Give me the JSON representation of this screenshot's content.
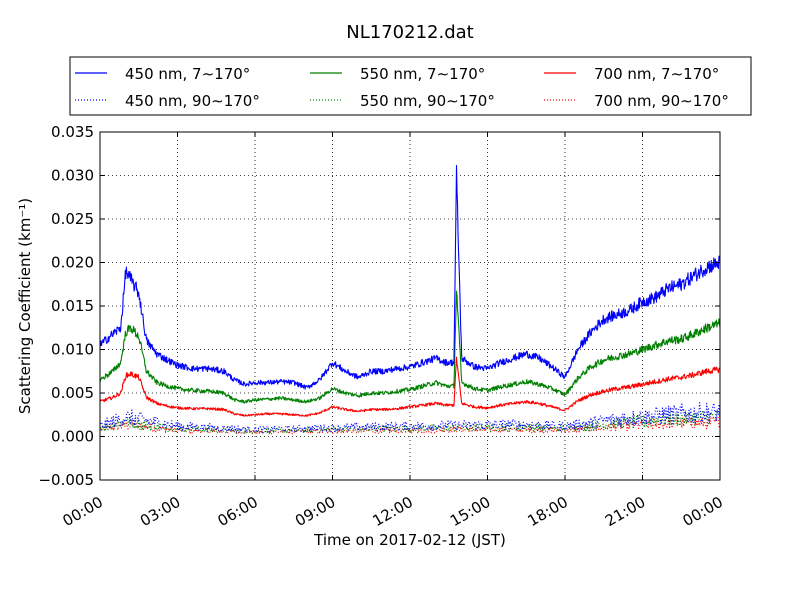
{
  "chart_data": {
    "type": "line",
    "title": "NL170212.dat",
    "xlabel": "Time on 2017-02-12 (JST)",
    "ylabel": "Scattering Coefficient (km⁻¹)",
    "xlim_hours": [
      0,
      24
    ],
    "ylim": [
      -0.005,
      0.035
    ],
    "xticks": [
      {
        "h": 0,
        "label": "00:00"
      },
      {
        "h": 3,
        "label": "03:00"
      },
      {
        "h": 6,
        "label": "06:00"
      },
      {
        "h": 9,
        "label": "09:00"
      },
      {
        "h": 12,
        "label": "12:00"
      },
      {
        "h": 15,
        "label": "15:00"
      },
      {
        "h": 18,
        "label": "18:00"
      },
      {
        "h": 21,
        "label": "21:00"
      },
      {
        "h": 24,
        "label": "00:00"
      }
    ],
    "yticks": [
      {
        "v": -0.005,
        "label": "−0.005"
      },
      {
        "v": 0.0,
        "label": "0.000"
      },
      {
        "v": 0.005,
        "label": "0.005"
      },
      {
        "v": 0.01,
        "label": "0.010"
      },
      {
        "v": 0.015,
        "label": "0.015"
      },
      {
        "v": 0.02,
        "label": "0.020"
      },
      {
        "v": 0.025,
        "label": "0.025"
      },
      {
        "v": 0.03,
        "label": "0.030"
      },
      {
        "v": 0.035,
        "label": "0.035"
      }
    ],
    "grid": true,
    "legend_position": "top",
    "series": [
      {
        "name": "450 nm, 7∼170°",
        "color": "#0000ff",
        "style": "solid",
        "x": [
          0,
          0.5,
          0.8,
          1.0,
          1.2,
          1.5,
          1.8,
          2.2,
          2.6,
          3.0,
          3.6,
          4.2,
          4.8,
          5.2,
          5.6,
          6.0,
          6.5,
          7.0,
          7.5,
          8.0,
          8.5,
          9.0,
          9.5,
          10.0,
          10.5,
          11.0,
          11.5,
          12.0,
          12.5,
          13.0,
          13.4,
          13.7,
          13.8,
          14.0,
          14.5,
          15.0,
          15.5,
          16.0,
          16.5,
          17.0,
          17.5,
          18.0,
          18.5,
          19.0,
          19.5,
          20.0,
          20.5,
          21.0,
          21.5,
          22.0,
          22.5,
          23.0,
          23.5,
          24.0
        ],
        "y": [
          0.0105,
          0.0118,
          0.0125,
          0.019,
          0.018,
          0.0165,
          0.011,
          0.0095,
          0.0088,
          0.0082,
          0.0078,
          0.0078,
          0.0075,
          0.0065,
          0.006,
          0.0062,
          0.0062,
          0.0063,
          0.0062,
          0.0056,
          0.0065,
          0.0085,
          0.0075,
          0.0068,
          0.0075,
          0.0075,
          0.0078,
          0.008,
          0.0085,
          0.009,
          0.0085,
          0.0085,
          0.03,
          0.009,
          0.008,
          0.0078,
          0.0085,
          0.009,
          0.0095,
          0.009,
          0.008,
          0.0068,
          0.01,
          0.012,
          0.0135,
          0.014,
          0.0145,
          0.0155,
          0.016,
          0.017,
          0.0175,
          0.0185,
          0.0195,
          0.02
        ]
      },
      {
        "name": "550 nm, 7∼170°",
        "color": "#008000",
        "style": "solid",
        "x": [
          0,
          0.5,
          0.8,
          1.0,
          1.2,
          1.5,
          1.8,
          2.2,
          2.6,
          3.0,
          3.6,
          4.2,
          4.8,
          5.2,
          5.6,
          6.0,
          6.5,
          7.0,
          7.5,
          8.0,
          8.5,
          9.0,
          9.5,
          10.0,
          10.5,
          11.0,
          11.5,
          12.0,
          12.5,
          13.0,
          13.4,
          13.7,
          13.8,
          14.0,
          14.5,
          15.0,
          15.5,
          16.0,
          16.5,
          17.0,
          17.5,
          18.0,
          18.5,
          19.0,
          19.5,
          20.0,
          20.5,
          21.0,
          21.5,
          22.0,
          22.5,
          23.0,
          23.5,
          24.0
        ],
        "y": [
          0.0065,
          0.0075,
          0.0085,
          0.012,
          0.0125,
          0.0115,
          0.0075,
          0.0062,
          0.0058,
          0.0055,
          0.0053,
          0.0052,
          0.005,
          0.0042,
          0.004,
          0.0042,
          0.0043,
          0.0044,
          0.0042,
          0.004,
          0.0044,
          0.0055,
          0.005,
          0.0047,
          0.005,
          0.005,
          0.0052,
          0.0054,
          0.0058,
          0.0062,
          0.0058,
          0.0058,
          0.017,
          0.0062,
          0.0055,
          0.0053,
          0.0057,
          0.006,
          0.0063,
          0.006,
          0.0055,
          0.0048,
          0.0067,
          0.008,
          0.0088,
          0.0092,
          0.0095,
          0.01,
          0.0105,
          0.011,
          0.0112,
          0.0118,
          0.0125,
          0.013
        ]
      },
      {
        "name": "700 nm, 7∼170°",
        "color": "#ff0000",
        "style": "solid",
        "x": [
          0,
          0.5,
          0.8,
          1.0,
          1.2,
          1.5,
          1.8,
          2.2,
          2.6,
          3.0,
          3.6,
          4.2,
          4.8,
          5.2,
          5.6,
          6.0,
          6.5,
          7.0,
          7.5,
          8.0,
          8.5,
          9.0,
          9.5,
          10.0,
          10.5,
          11.0,
          11.5,
          12.0,
          12.5,
          13.0,
          13.4,
          13.7,
          13.8,
          14.0,
          14.5,
          15.0,
          15.5,
          16.0,
          16.5,
          17.0,
          17.5,
          18.0,
          18.5,
          19.0,
          19.5,
          20.0,
          20.5,
          21.0,
          21.5,
          22.0,
          22.5,
          23.0,
          23.5,
          24.0
        ],
        "y": [
          0.004,
          0.0045,
          0.005,
          0.007,
          0.0072,
          0.0068,
          0.0045,
          0.0038,
          0.0035,
          0.0033,
          0.0032,
          0.0032,
          0.0031,
          0.0026,
          0.0024,
          0.0025,
          0.0026,
          0.0026,
          0.0025,
          0.0024,
          0.0027,
          0.0034,
          0.0031,
          0.0029,
          0.0031,
          0.0031,
          0.0032,
          0.0034,
          0.0036,
          0.0038,
          0.0036,
          0.0036,
          0.009,
          0.0038,
          0.0034,
          0.0033,
          0.0036,
          0.0038,
          0.004,
          0.0038,
          0.0034,
          0.003,
          0.0041,
          0.0048,
          0.0052,
          0.0055,
          0.0057,
          0.006,
          0.0063,
          0.0066,
          0.0068,
          0.0071,
          0.0075,
          0.0077
        ]
      },
      {
        "name": "450 nm, 90∼170°",
        "color": "#0000ff",
        "style": "dotted",
        "x": [
          0,
          1.0,
          1.5,
          3,
          6,
          9,
          12,
          14,
          16,
          18,
          20,
          22,
          24
        ],
        "y": [
          0.0012,
          0.0022,
          0.002,
          0.0012,
          0.0008,
          0.001,
          0.0012,
          0.0013,
          0.0014,
          0.0012,
          0.002,
          0.0025,
          0.0028
        ]
      },
      {
        "name": "550 nm, 90∼170°",
        "color": "#008000",
        "style": "dotted",
        "x": [
          0,
          1.0,
          1.5,
          3,
          6,
          9,
          12,
          14,
          16,
          18,
          20,
          22,
          24
        ],
        "y": [
          0.001,
          0.0017,
          0.0015,
          0.0009,
          0.0006,
          0.0008,
          0.0009,
          0.001,
          0.0011,
          0.0009,
          0.0015,
          0.002,
          0.0022
        ]
      },
      {
        "name": "700 nm, 90∼170°",
        "color": "#ff0000",
        "style": "dotted",
        "x": [
          0,
          1.0,
          1.5,
          3,
          6,
          9,
          12,
          14,
          16,
          18,
          20,
          22,
          24
        ],
        "y": [
          0.0008,
          0.0013,
          0.0012,
          0.0007,
          0.0005,
          0.0006,
          0.0007,
          0.0008,
          0.0008,
          0.0007,
          0.0011,
          0.0015,
          0.0016
        ]
      }
    ]
  }
}
